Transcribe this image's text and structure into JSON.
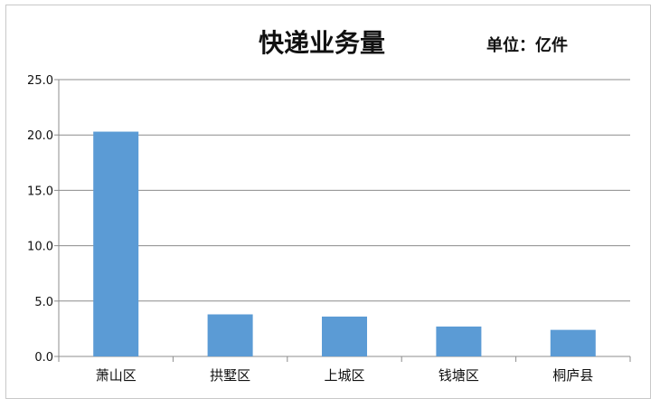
{
  "chart_data": {
    "type": "bar",
    "title": "快递业务量",
    "subtitle": "单位：亿件",
    "categories": [
      "萧山区",
      "拱墅区",
      "上城区",
      "钱塘区",
      "桐庐县"
    ],
    "values": [
      20.3,
      3.8,
      3.6,
      2.7,
      2.4
    ],
    "ylim": [
      0,
      25
    ],
    "yticks": [
      "0.0",
      "5.0",
      "10.0",
      "15.0",
      "20.0",
      "25.0"
    ],
    "grid": true,
    "bar_color": "#5b9bd5",
    "grid_color": "#8c8c8c"
  }
}
